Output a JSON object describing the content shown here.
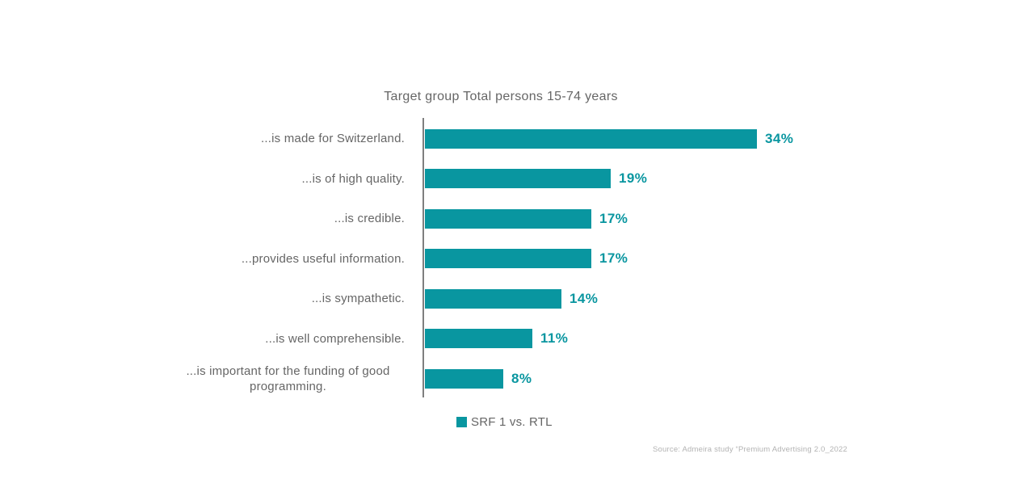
{
  "chart_data": {
    "type": "bar",
    "orientation": "horizontal",
    "title": "Target group Total persons 15-74 years",
    "categories": [
      "...is made for Switzerland.",
      "...is of high quality.",
      "...is credible.",
      "...provides useful information.",
      "...is sympathetic.",
      "...is well comprehensible.",
      "...is important for the funding of good programming."
    ],
    "series": [
      {
        "name": "SRF 1 vs. RTL",
        "values": [
          34,
          19,
          17,
          17,
          14,
          11,
          8
        ]
      }
    ],
    "values": [
      34,
      19,
      17,
      17,
      14,
      11,
      8
    ],
    "value_labels": [
      "34%",
      "19%",
      "17%",
      "17%",
      "14%",
      "11%",
      "8%"
    ],
    "unit": "%",
    "xlim": [
      0,
      38
    ],
    "grid": false,
    "legend_position": "bottom",
    "data_labels": "outside-end"
  },
  "legend": {
    "label": "SRF 1 vs. RTL"
  },
  "source": "Source: Admeira study “Premium Advertising 2.0_2022",
  "colors": {
    "bar": "#0996A0",
    "value_label": "#0996A0",
    "label_text": "#666666",
    "axis_line": "#7F7F7F",
    "source_text": "#B3B3B3",
    "background": "#FFFFFF"
  }
}
